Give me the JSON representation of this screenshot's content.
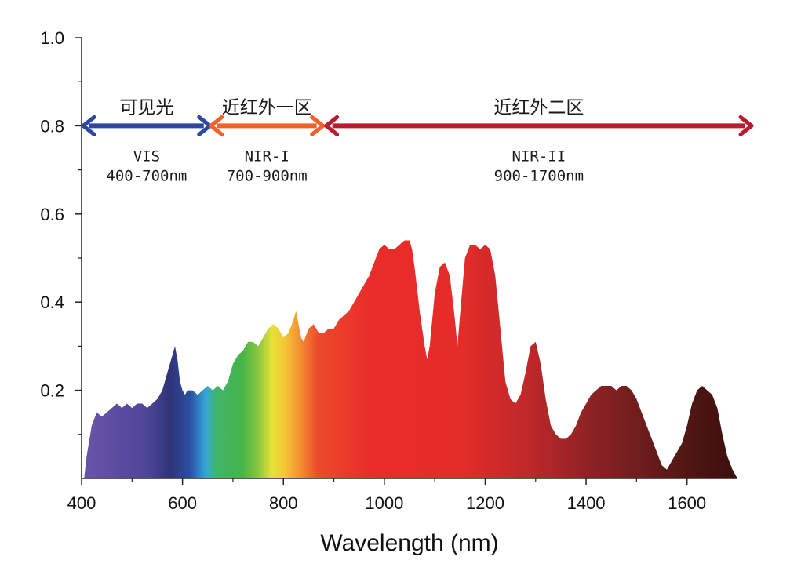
{
  "chart_data": {
    "type": "area",
    "title": "",
    "xlabel": "Wavelength (nm)",
    "ylabel": "",
    "xlim": [
      400,
      1700
    ],
    "ylim": [
      0,
      1.0
    ],
    "x_ticks": [
      400,
      600,
      800,
      1000,
      1200,
      1400,
      1600
    ],
    "y_ticks": [
      0.2,
      0.4,
      0.6,
      0.8,
      1.0
    ],
    "y_tick_labels": [
      "0.2",
      "0.4",
      "0.6",
      "0.8",
      "1.0"
    ],
    "grid": false,
    "fill": "visible-spectrum gradient (violet → red → dark brown)",
    "series": [
      {
        "x": [
          405,
          410,
          420,
          430,
          440,
          450,
          460,
          470,
          480,
          490,
          500,
          510,
          520,
          530,
          540,
          550,
          560,
          570,
          580,
          585,
          590,
          595,
          600,
          605,
          610,
          620,
          630,
          640,
          650,
          660,
          670,
          680,
          690,
          700,
          710,
          720,
          730,
          740,
          750,
          760,
          770,
          780,
          790,
          800,
          810,
          820,
          825,
          830,
          835,
          840,
          850,
          860,
          870,
          880,
          890,
          900,
          910,
          920,
          930,
          940,
          950,
          960,
          970,
          980,
          990,
          1000,
          1010,
          1020,
          1030,
          1040,
          1050,
          1055,
          1060,
          1070,
          1080,
          1085,
          1090,
          1100,
          1110,
          1120,
          1130,
          1140,
          1145,
          1150,
          1160,
          1170,
          1180,
          1190,
          1200,
          1210,
          1220,
          1230,
          1240,
          1250,
          1260,
          1270,
          1280,
          1290,
          1300,
          1310,
          1320,
          1330,
          1340,
          1350,
          1360,
          1370,
          1380,
          1390,
          1400,
          1410,
          1420,
          1430,
          1440,
          1450,
          1460,
          1470,
          1480,
          1490,
          1500,
          1510,
          1520,
          1530,
          1540,
          1550,
          1560,
          1570,
          1580,
          1590,
          1600,
          1610,
          1620,
          1630,
          1640,
          1650,
          1660,
          1670,
          1680,
          1690,
          1700
        ],
        "y": [
          0.0,
          0.05,
          0.12,
          0.15,
          0.14,
          0.15,
          0.16,
          0.17,
          0.16,
          0.17,
          0.16,
          0.17,
          0.17,
          0.16,
          0.17,
          0.18,
          0.2,
          0.24,
          0.28,
          0.3,
          0.27,
          0.22,
          0.2,
          0.19,
          0.2,
          0.2,
          0.19,
          0.2,
          0.21,
          0.2,
          0.21,
          0.2,
          0.22,
          0.26,
          0.28,
          0.29,
          0.31,
          0.31,
          0.3,
          0.32,
          0.34,
          0.35,
          0.34,
          0.32,
          0.33,
          0.36,
          0.38,
          0.35,
          0.32,
          0.31,
          0.34,
          0.35,
          0.33,
          0.33,
          0.34,
          0.34,
          0.36,
          0.37,
          0.38,
          0.4,
          0.42,
          0.44,
          0.46,
          0.49,
          0.52,
          0.53,
          0.52,
          0.52,
          0.53,
          0.54,
          0.54,
          0.52,
          0.48,
          0.38,
          0.3,
          0.27,
          0.3,
          0.42,
          0.48,
          0.49,
          0.46,
          0.36,
          0.3,
          0.37,
          0.5,
          0.53,
          0.53,
          0.52,
          0.53,
          0.52,
          0.46,
          0.34,
          0.22,
          0.18,
          0.17,
          0.19,
          0.24,
          0.3,
          0.31,
          0.26,
          0.18,
          0.12,
          0.1,
          0.09,
          0.09,
          0.1,
          0.12,
          0.15,
          0.17,
          0.19,
          0.2,
          0.21,
          0.21,
          0.21,
          0.2,
          0.21,
          0.21,
          0.2,
          0.18,
          0.15,
          0.12,
          0.09,
          0.06,
          0.03,
          0.02,
          0.04,
          0.06,
          0.08,
          0.12,
          0.17,
          0.2,
          0.21,
          0.2,
          0.19,
          0.16,
          0.1,
          0.05,
          0.02,
          0.0
        ]
      }
    ],
    "regions": [
      {
        "name": "可见光",
        "code": "VIS",
        "range_label": "400-700nm",
        "range": [
          400,
          650
        ],
        "color": "#2e48a2"
      },
      {
        "name": "近红外一区",
        "code": "NIR-I",
        "range_label": "700-900nm",
        "range": [
          650,
          880
        ],
        "color": "#f0622a"
      },
      {
        "name": "近红外二区",
        "code": "NIR-II",
        "range_label": "900-1700nm",
        "range": [
          880,
          1700
        ],
        "color": "#b81c2e"
      }
    ],
    "region_arrow_y": 0.8
  }
}
